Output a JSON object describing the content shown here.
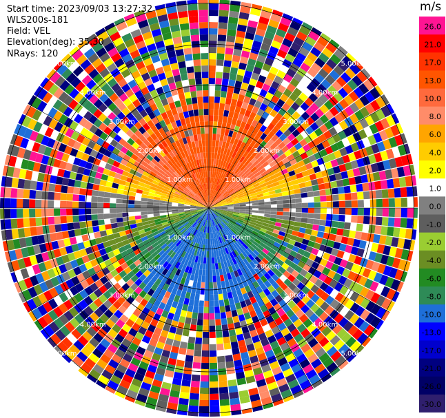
{
  "header": {
    "start_time": "Start time: 2023/09/03 13:27:32",
    "instrument": "WLS200s-181",
    "field": "Field: VEL",
    "elevation": "Elevation(deg): 35.30",
    "nrays": "NRays: 120"
  },
  "colorbar": {
    "unit": "m/s",
    "labels": [
      "26.0",
      "21.0",
      "17.0",
      "13.0",
      "10.0",
      "8.0",
      "6.0",
      "4.0",
      "2.0",
      "1.0",
      "0.0",
      "-1.0",
      "-2.0",
      "-4.0",
      "-6.0",
      "-8.0",
      "-10.0",
      "-13.0",
      "-17.0",
      "-21.0",
      "-26.0",
      "-30.0"
    ],
    "colors": [
      "#ff1493",
      "#ff0000",
      "#ff3300",
      "#ff5500",
      "#ff6a3d",
      "#ff8c69",
      "#ffa500",
      "#ffcc00",
      "#ffff00",
      "#ffffff",
      "#808080",
      "#5e5e5e",
      "#9acd32",
      "#6b8e23",
      "#228b22",
      "#2e8b57",
      "#1e6fd9",
      "#0000ff",
      "#0000cd",
      "#000080",
      "#000066",
      "#2f1f6e"
    ]
  },
  "chart_data": {
    "type": "ppi",
    "field": "VEL",
    "units": "m/s",
    "elevation_deg": 35.3,
    "nrays": 120,
    "range_rings_km": [
      1.0,
      2.0,
      3.0,
      4.0,
      5.0
    ],
    "range_ring_labels": [
      "1.00km",
      "2.00km",
      "3.00km",
      "4.00km",
      "5.00km"
    ],
    "velocity_pattern": {
      "north": "positive 6 to 17 m/s",
      "east_west": "near 0 m/s",
      "south": "negative -8 to -17 m/s",
      "beyond_3km": "noise"
    }
  }
}
